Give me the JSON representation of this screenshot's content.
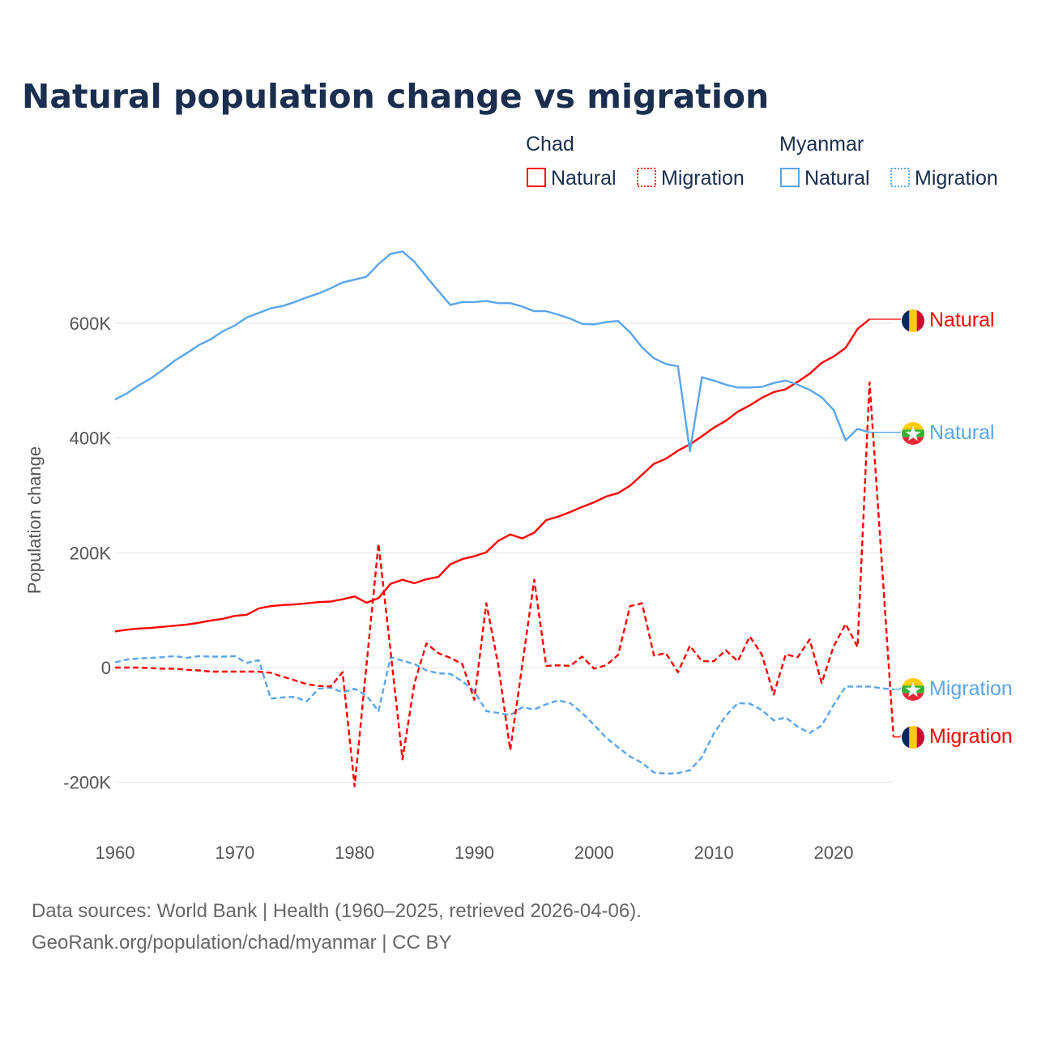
{
  "title": "Natural population change vs migration",
  "legend": {
    "groups": [
      {
        "country": "Chad",
        "natural_label": "Natural",
        "migration_label": "Migration",
        "color": "#ff0000"
      },
      {
        "country": "Myanmar",
        "natural_label": "Natural",
        "migration_label": "Migration",
        "color": "#5aa5ea"
      }
    ]
  },
  "footer": {
    "line1": "Data sources: World Bank | Health (1960–2025, retrieved 2026-04-06).",
    "line2": "GeoRank.org/population/chad/myanmar | CC BY"
  },
  "chart_data": {
    "type": "line",
    "title": "Natural population change vs migration",
    "xlabel": "",
    "ylabel": "Population change",
    "xlim": [
      1960,
      2025
    ],
    "ylim": [
      -200000,
      600000
    ],
    "x_ticks": [
      "1960",
      "1970",
      "1980",
      "1990",
      "2000",
      "2010",
      "2020"
    ],
    "y_ticks": [
      {
        "v": -200000,
        "label": "-200K"
      },
      {
        "v": 0,
        "label": "0"
      },
      {
        "v": 200000,
        "label": "200K"
      },
      {
        "v": 400000,
        "label": "400K"
      },
      {
        "v": 600000,
        "label": "600K"
      }
    ],
    "grid": true,
    "x_start": 1960,
    "series": [
      {
        "name": "Chad Natural",
        "end_label": "Natural",
        "country": "Chad",
        "color": "#ff0000",
        "dash": false,
        "values": [
          63,
          66,
          68,
          69,
          71,
          73,
          75,
          78,
          82,
          85,
          90,
          92,
          103,
          107,
          109,
          110,
          112,
          114,
          115,
          119,
          124,
          113,
          121,
          146,
          153,
          147,
          154,
          158,
          180,
          189,
          194,
          201,
          221,
          232,
          225,
          235,
          257,
          263,
          271,
          280,
          288,
          298,
          304,
          317,
          336,
          355,
          364,
          378,
          389,
          403,
          418,
          430,
          446,
          457,
          470,
          480,
          485,
          498,
          512,
          531,
          542,
          557,
          590,
          607
        ]
      },
      {
        "name": "Myanmar Natural",
        "end_label": "Natural",
        "country": "Myanmar",
        "color": "#5aa5ea",
        "dash": false,
        "values": [
          467,
          478,
          492,
          504,
          519,
          535,
          548,
          562,
          572,
          586,
          596,
          610,
          618,
          626,
          630,
          637,
          645,
          652,
          661,
          671,
          676,
          681,
          703,
          721,
          725,
          707,
          681,
          656,
          632,
          637,
          637,
          639,
          635,
          635,
          629,
          621,
          621,
          615,
          608,
          599,
          598,
          602,
          604,
          584,
          558,
          539,
          529,
          525,
          377,
          506,
          500,
          493,
          488,
          488,
          489,
          496,
          500,
          493,
          484,
          471,
          449,
          396,
          416,
          410
        ]
      },
      {
        "name": "Myanmar Migration",
        "end_label": "Migration",
        "country": "Myanmar",
        "color": "#5aa5ea",
        "dash": true,
        "values": [
          9,
          14,
          16,
          17,
          18,
          20,
          17,
          20,
          19,
          19,
          20,
          8,
          13,
          -54,
          -52,
          -51,
          -59,
          -37,
          -35,
          -43,
          -37,
          -49,
          -76,
          18,
          12,
          6,
          -5,
          -10,
          -11,
          -24,
          -41,
          -76,
          -79,
          -83,
          -69,
          -73,
          -64,
          -57,
          -62,
          -79,
          -100,
          -122,
          -139,
          -155,
          -166,
          -183,
          -185,
          -184,
          -179,
          -156,
          -115,
          -84,
          -62,
          -63,
          -74,
          -92,
          -87,
          -103,
          -114,
          -101,
          -65,
          -33,
          -33,
          -33,
          -36,
          -38
        ]
      },
      {
        "name": "Chad Migration",
        "end_label": "Migration",
        "country": "Chad",
        "color": "#ff0000",
        "dash": true,
        "values": [
          0,
          0,
          0,
          -1,
          -2,
          -2,
          -4,
          -5,
          -7,
          -7,
          -7,
          -7,
          -7,
          -9,
          -16,
          -22,
          -29,
          -32,
          -33,
          -8,
          -207,
          5,
          216,
          30,
          -160,
          -27,
          42,
          25,
          17,
          6,
          -56,
          112,
          4,
          -144,
          4,
          153,
          3,
          4,
          3,
          19,
          -2,
          4,
          22,
          107,
          112,
          21,
          25,
          -8,
          38,
          11,
          11,
          30,
          11,
          54,
          23,
          -47,
          23,
          18,
          49,
          -27,
          37,
          76,
          36,
          497,
          190,
          -121
        ]
      }
    ],
    "value_unit": "thousands"
  }
}
